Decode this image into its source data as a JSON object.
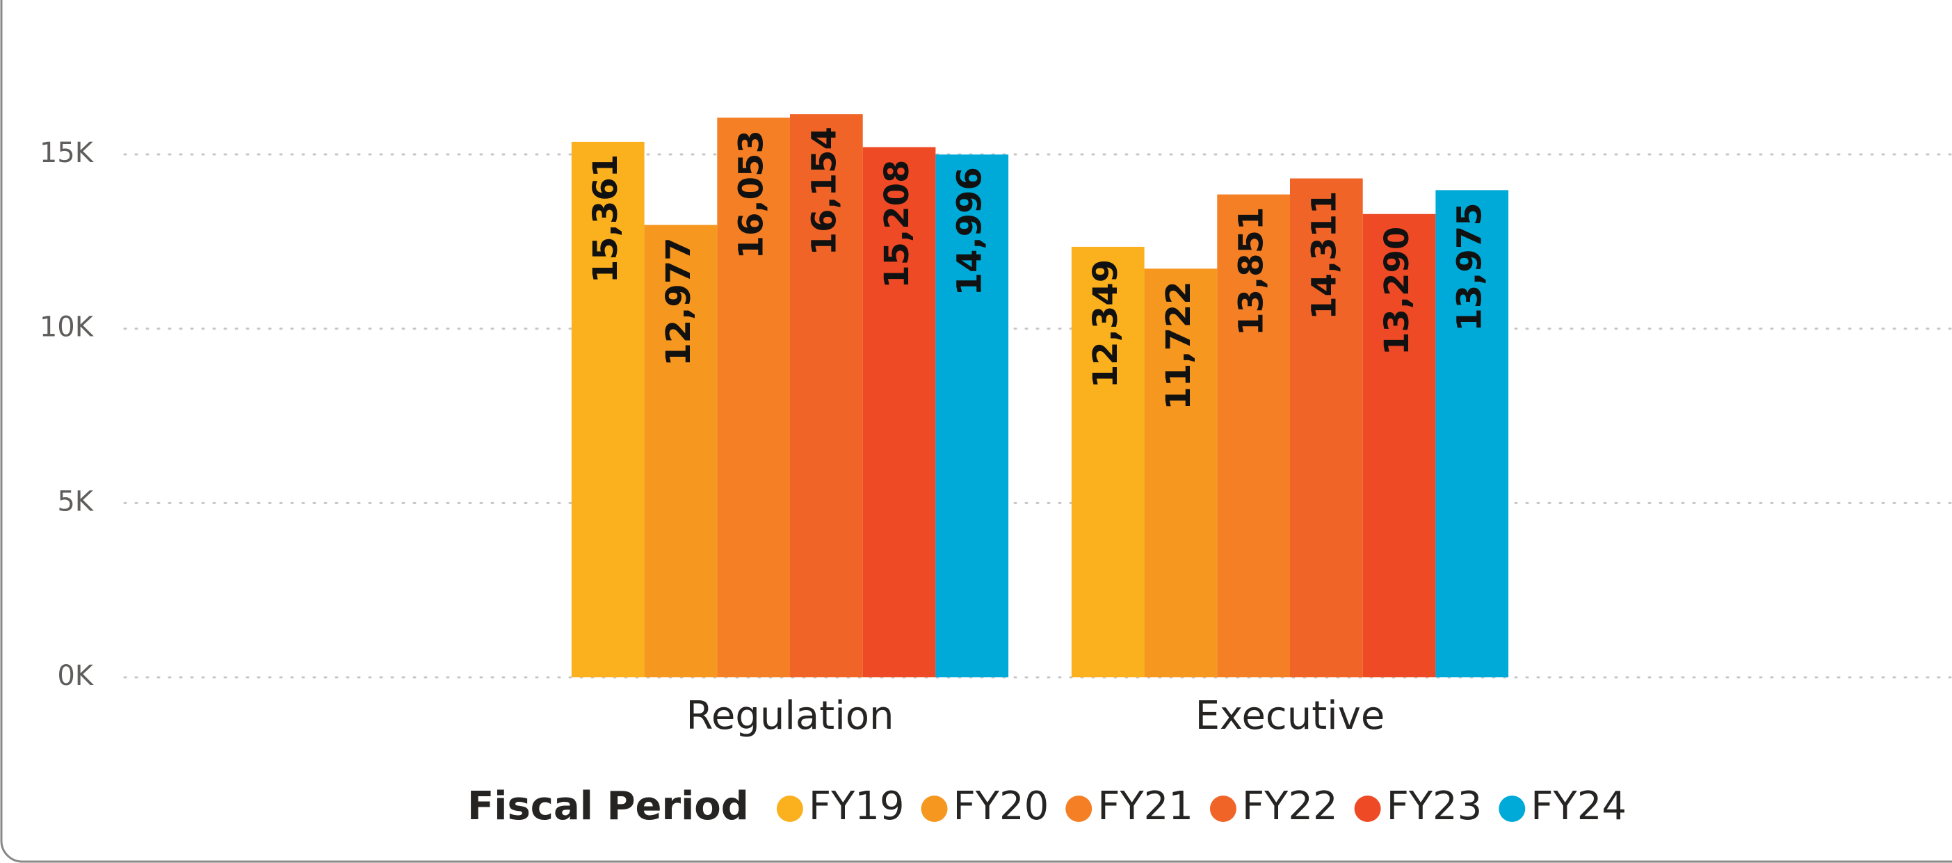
{
  "chart_data": {
    "type": "bar",
    "categories": [
      "Regulation",
      "Executive"
    ],
    "legend_title": "Fiscal Period",
    "series": [
      {
        "name": "FY19",
        "color": "#fbb01e",
        "values": [
          15361,
          12349
        ],
        "value_labels": [
          "15,361",
          "12,349"
        ]
      },
      {
        "name": "FY20",
        "color": "#f6971f",
        "values": [
          12977,
          11722
        ],
        "value_labels": [
          "12,977",
          "11,722"
        ]
      },
      {
        "name": "FY21",
        "color": "#f47f25",
        "values": [
          16053,
          13851
        ],
        "value_labels": [
          "16,053",
          "13,851"
        ]
      },
      {
        "name": "FY22",
        "color": "#f06527",
        "values": [
          16154,
          14311
        ],
        "value_labels": [
          "16,154",
          "14,311"
        ]
      },
      {
        "name": "FY23",
        "color": "#ee4a25",
        "values": [
          15208,
          13290
        ],
        "value_labels": [
          "15,208",
          "13,290"
        ]
      },
      {
        "name": "FY24",
        "color": "#00aad8",
        "values": [
          14996,
          13975
        ],
        "value_labels": [
          "14,996",
          "13,975"
        ]
      }
    ],
    "ylim": [
      0,
      17000
    ],
    "yticks": [
      {
        "value": 0,
        "label": "0K"
      },
      {
        "value": 5000,
        "label": "5K"
      },
      {
        "value": 10000,
        "label": "10K"
      },
      {
        "value": 15000,
        "label": "15K"
      }
    ],
    "grid": true,
    "legend": "bottom"
  }
}
